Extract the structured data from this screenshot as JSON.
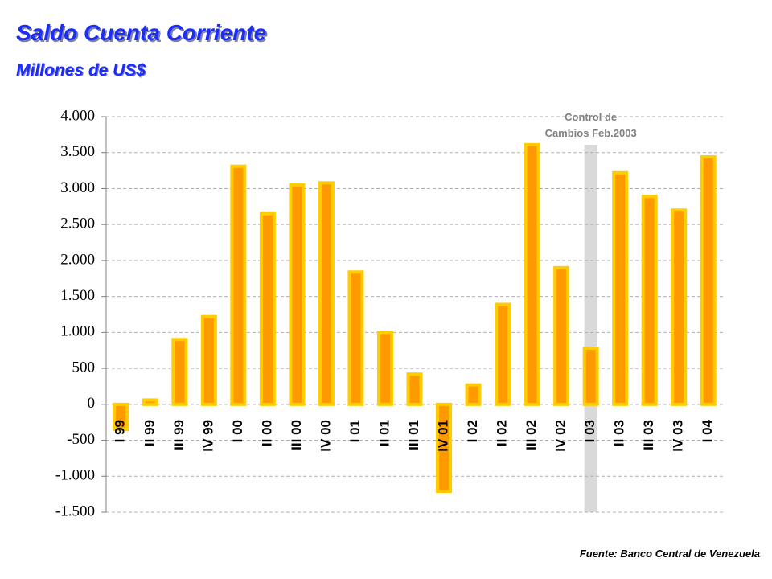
{
  "chart_data": {
    "type": "bar",
    "title": "Saldo Cuenta Corriente",
    "subtitle": "Millones de US$",
    "categories": [
      "I 99",
      "II 99",
      "III 99",
      "IV 99",
      "I 00",
      "II 00",
      "III 00",
      "IV 00",
      "I 01",
      "II 01",
      "III 01",
      "IV 01",
      "I 02",
      "II 02",
      "III 02",
      "IV 02",
      "I 03",
      "II 03",
      "III 03",
      "IV 03",
      "I 04"
    ],
    "values": [
      -350,
      60,
      900,
      1220,
      3310,
      2650,
      3050,
      3080,
      1840,
      1000,
      420,
      -1210,
      270,
      1390,
      3610,
      1900,
      780,
      3220,
      2890,
      2700,
      3440
    ],
    "color": "#ff9900",
    "border_color": "#ffcc00",
    "ylim": [
      -1500,
      4000
    ],
    "yticks": [
      {
        "value": -1500,
        "label": "-1.500"
      },
      {
        "value": -1000,
        "label": "-1.000"
      },
      -500,
      0,
      500,
      {
        "value": 1000,
        "label": "1.000"
      },
      {
        "value": 1500,
        "label": "1.500"
      },
      {
        "value": 2000,
        "label": "2.000"
      },
      {
        "value": 2500,
        "label": "2.500"
      },
      {
        "value": 3000,
        "label": "3.000"
      },
      {
        "value": 3500,
        "label": "3.500"
      },
      {
        "value": 4000,
        "label": "4.000"
      }
    ],
    "grid": true,
    "annotation": [
      "Control de",
      "Cambios Feb.2003"
    ],
    "highlight": "I 03",
    "source": "Fuente: Banco Central de Venezuela"
  }
}
